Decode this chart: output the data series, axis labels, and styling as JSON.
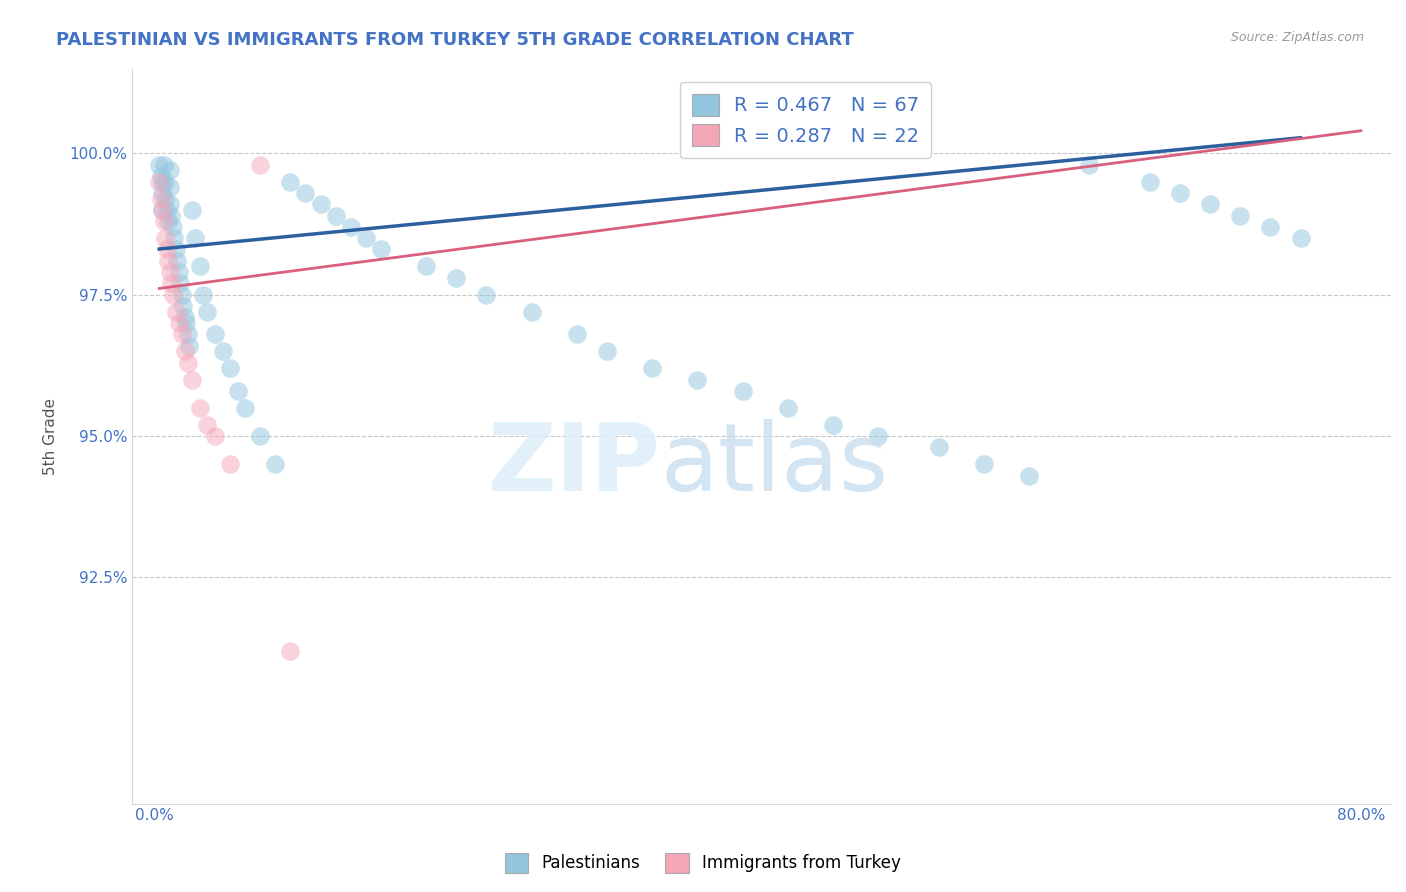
{
  "title": "PALESTINIAN VS IMMIGRANTS FROM TURKEY 5TH GRADE CORRELATION CHART",
  "source": "Source: ZipAtlas.com",
  "ylabel": "5th Grade",
  "blue_color": "#92c5de",
  "pink_color": "#f4a6b8",
  "blue_line_color": "#2c5f9e",
  "pink_line_color": "#d95f7f",
  "title_color": "#4472c4",
  "legend_label1": "R = 0.467   N = 67",
  "legend_label2": "R = 0.287   N = 22",
  "bottom_label1": "Palestinians",
  "bottom_label2": "Immigrants from Turkey",
  "blue_x": [
    0.3,
    0.4,
    0.5,
    0.5,
    0.5,
    0.6,
    0.7,
    0.7,
    0.8,
    0.9,
    1.0,
    1.0,
    1.0,
    1.1,
    1.2,
    1.3,
    1.4,
    1.5,
    1.6,
    1.7,
    1.8,
    1.9,
    2.0,
    2.1,
    2.2,
    2.3,
    2.5,
    2.7,
    3.0,
    3.2,
    3.5,
    4.0,
    4.5,
    5.0,
    5.5,
    6.0,
    7.0,
    8.0,
    9.0,
    10.0,
    11.0,
    12.0,
    13.0,
    14.0,
    15.0,
    18.0,
    20.0,
    22.0,
    25.0,
    28.0,
    30.0,
    33.0,
    36.0,
    39.0,
    42.0,
    45.0,
    48.0,
    52.0,
    55.0,
    58.0,
    62.0,
    66.0,
    68.0,
    70.0,
    72.0,
    74.0,
    76.0
  ],
  "blue_y": [
    99.8,
    99.6,
    99.5,
    99.3,
    99.0,
    99.8,
    99.5,
    99.2,
    99.0,
    98.8,
    99.7,
    99.4,
    99.1,
    98.9,
    98.7,
    98.5,
    98.3,
    98.1,
    97.9,
    97.7,
    97.5,
    97.3,
    97.1,
    97.0,
    96.8,
    96.6,
    99.0,
    98.5,
    98.0,
    97.5,
    97.2,
    96.8,
    96.5,
    96.2,
    95.8,
    95.5,
    95.0,
    94.5,
    99.5,
    99.3,
    99.1,
    98.9,
    98.7,
    98.5,
    98.3,
    98.0,
    97.8,
    97.5,
    97.2,
    96.8,
    96.5,
    96.2,
    96.0,
    95.8,
    95.5,
    95.2,
    95.0,
    94.8,
    94.5,
    94.3,
    99.8,
    99.5,
    99.3,
    99.1,
    98.9,
    98.7,
    98.5
  ],
  "pink_x": [
    0.3,
    0.4,
    0.5,
    0.6,
    0.7,
    0.8,
    0.9,
    1.0,
    1.1,
    1.2,
    1.4,
    1.6,
    1.8,
    2.0,
    2.2,
    2.5,
    3.0,
    3.5,
    4.0,
    5.0,
    7.0,
    9.0
  ],
  "pink_y": [
    99.5,
    99.2,
    99.0,
    98.8,
    98.5,
    98.3,
    98.1,
    97.9,
    97.7,
    97.5,
    97.2,
    97.0,
    96.8,
    96.5,
    96.3,
    96.0,
    95.5,
    95.2,
    95.0,
    94.5,
    99.8,
    91.2
  ]
}
